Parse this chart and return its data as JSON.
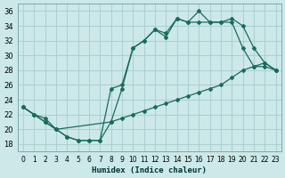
{
  "xlabel": "Humidex (Indice chaleur)",
  "bg_color": "#cce8e8",
  "grid_color": "#aacfcf",
  "line_color": "#1a6b5a",
  "xlim": [
    -0.5,
    23.5
  ],
  "ylim": [
    17,
    37
  ],
  "yticks": [
    18,
    20,
    22,
    24,
    26,
    28,
    30,
    32,
    34,
    36
  ],
  "xticks": [
    0,
    1,
    2,
    3,
    4,
    5,
    6,
    7,
    8,
    9,
    10,
    11,
    12,
    13,
    14,
    15,
    16,
    17,
    18,
    19,
    20,
    21,
    22,
    23
  ],
  "line_jagged_x": [
    0,
    1,
    2,
    3,
    4,
    5,
    6,
    7,
    8,
    9,
    10,
    11,
    12,
    13,
    14,
    15,
    16,
    17,
    18,
    19,
    20,
    21,
    22,
    23
  ],
  "line_jagged_y": [
    23,
    22,
    21,
    20,
    19,
    18.5,
    18.5,
    18.5,
    21,
    25.5,
    31,
    32,
    33.5,
    32.5,
    35,
    34.5,
    36,
    34.5,
    34.5,
    34.5,
    31,
    28.5,
    29,
    28
  ],
  "line_smooth_x": [
    0,
    1,
    2,
    3,
    4,
    5,
    6,
    7,
    8,
    9,
    10,
    11,
    12,
    13,
    14,
    15,
    16,
    17,
    18,
    19,
    20,
    21,
    22,
    23
  ],
  "line_smooth_y": [
    23,
    22,
    21,
    20,
    19,
    18.5,
    18.5,
    18.5,
    25.5,
    26,
    31,
    32,
    33.5,
    33,
    35,
    34.5,
    34.5,
    34.5,
    34.5,
    35,
    34,
    31,
    29,
    28
  ],
  "line_diag_x": [
    0,
    1,
    2,
    3,
    8,
    9,
    10,
    11,
    12,
    13,
    14,
    15,
    16,
    17,
    18,
    19,
    20,
    21,
    22,
    23
  ],
  "line_diag_y": [
    23,
    22,
    21.5,
    20,
    21,
    21.5,
    22,
    22.5,
    23,
    23.5,
    24,
    24.5,
    25,
    25.5,
    26,
    27,
    28,
    28.5,
    28.5,
    28
  ]
}
